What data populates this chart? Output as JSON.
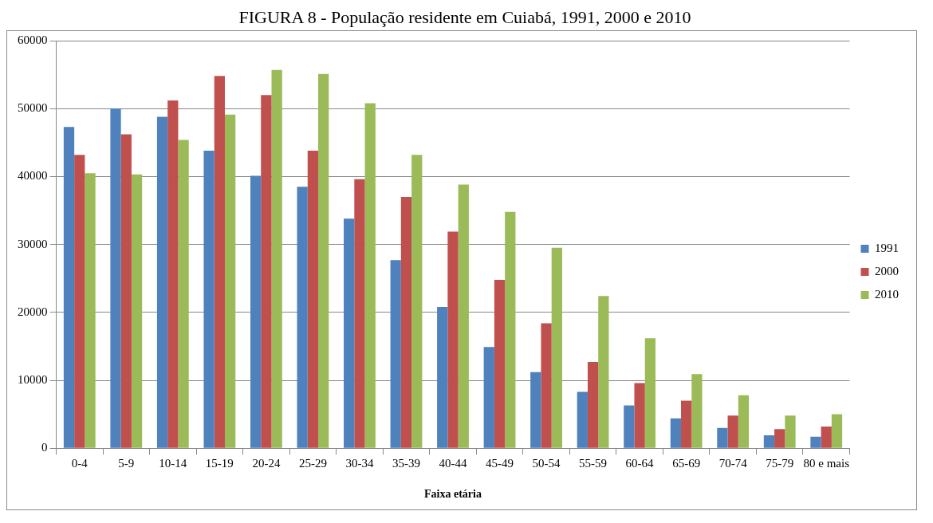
{
  "chart_data": {
    "type": "bar",
    "title": "FIGURA 8 - População residente em Cuiabá, 1991, 2000 e 2010",
    "xlabel": "Faixa etária",
    "categories": [
      "0-4",
      "5-9",
      "10-14",
      "15-19",
      "20-24",
      "25-29",
      "30-34",
      "35-39",
      "40-44",
      "45-49",
      "50-54",
      "55-59",
      "60-64",
      "65-69",
      "70-74",
      "75-79",
      "80 e mais"
    ],
    "series": [
      {
        "name": "1991",
        "color": "#4f81bd",
        "values": [
          47300,
          50000,
          48800,
          43800,
          40100,
          38500,
          33800,
          27700,
          20800,
          14900,
          11200,
          8300,
          6300,
          4400,
          3000,
          1900,
          1700
        ]
      },
      {
        "name": "2000",
        "color": "#c0504d",
        "values": [
          43200,
          46200,
          51200,
          54800,
          52000,
          43800,
          39600,
          37000,
          31900,
          24800,
          18400,
          12700,
          9600,
          7000,
          4800,
          2800,
          3200
        ]
      },
      {
        "name": "2010",
        "color": "#9bbb59",
        "values": [
          40500,
          40300,
          45400,
          49100,
          55700,
          55100,
          50800,
          43200,
          38800,
          34800,
          29500,
          22400,
          16200,
          10900,
          7800,
          4800,
          5000
        ]
      }
    ],
    "ylim": [
      0,
      60000
    ],
    "yticks": [
      0,
      10000,
      20000,
      30000,
      40000,
      50000,
      60000
    ],
    "grid": "y",
    "legend": "right"
  }
}
